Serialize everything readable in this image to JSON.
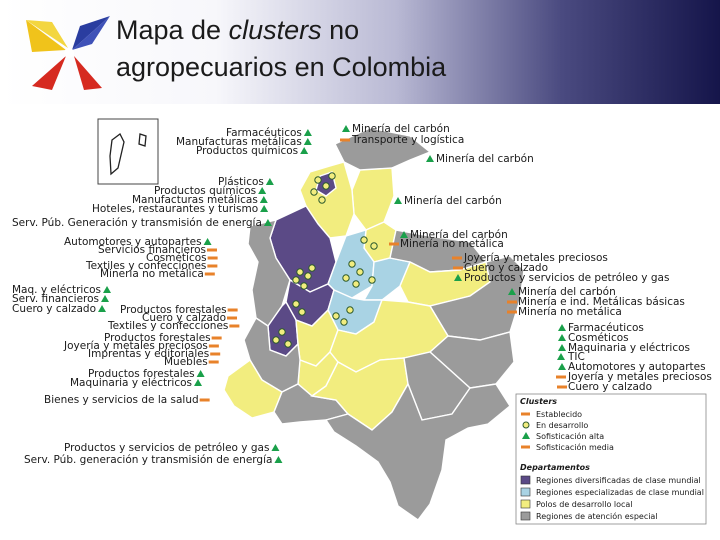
{
  "title": {
    "line1_prefix": "Mapa de ",
    "line1_italic": "clusters",
    "line1_suffix": " no",
    "line2": "agropecuarios en Colombia"
  },
  "colors": {
    "clase_mundial": "#5b4a86",
    "especializadas": "#a9d3e4",
    "polos": "#f2ed7f",
    "atencion_especial": "#9b9b9b",
    "established": "#e8822a",
    "sophisticated": "#1aa04a"
  },
  "map_labels": [
    {
      "text": "Farmacéuticos",
      "marker": "tri"
    },
    {
      "text": "Manufacturas metálicas",
      "marker": "tri"
    },
    {
      "text": "Productos químicos",
      "marker": "tri"
    },
    {
      "text": "Minería del carbón",
      "marker": "tri"
    },
    {
      "text": "Transporte y logística",
      "marker": "bar"
    },
    {
      "text": "Minería del carbón",
      "marker": "tri"
    },
    {
      "text": "Plásticos",
      "marker": "tri"
    },
    {
      "text": "Productos químicos",
      "marker": "tri"
    },
    {
      "text": "Manufacturas metálicas",
      "marker": "tri"
    },
    {
      "text": "Hoteles, restaurantes y turismo",
      "marker": "tri"
    },
    {
      "text": "Minería del carbón",
      "marker": "tri"
    },
    {
      "text": "Serv. Púb. Generación y transmisión de energía",
      "marker": "tri"
    },
    {
      "text": "Automotores y autopartes",
      "marker": "tri"
    },
    {
      "text": "Servicios financieros",
      "marker": "bar"
    },
    {
      "text": "Cosméticos",
      "marker": "bar"
    },
    {
      "text": "Textiles y confecciones",
      "marker": "bar"
    },
    {
      "text": "Minería no metálica",
      "marker": "bar"
    },
    {
      "text": "Minería del carbón",
      "marker": "tri"
    },
    {
      "text": "Minería no metálica",
      "marker": "bar"
    },
    {
      "text": "Joyería y metales preciosos",
      "marker": "bar"
    },
    {
      "text": "Cuero y calzado",
      "marker": "bar"
    },
    {
      "text": "Productos y servicios de petróleo y gas",
      "marker": "tri"
    },
    {
      "text": "Maq. y eléctricos",
      "marker": "tri"
    },
    {
      "text": "Serv. financieros",
      "marker": "tri"
    },
    {
      "text": "Cuero y calzado",
      "marker": "tri"
    },
    {
      "text": "Minería del carbón",
      "marker": "tri"
    },
    {
      "text": "Minería e ind. Metálicas básicas",
      "marker": "bar"
    },
    {
      "text": "Minería no metálica",
      "marker": "bar"
    },
    {
      "text": "Productos forestales",
      "marker": "bar"
    },
    {
      "text": "Cuero y calzado",
      "marker": "bar"
    },
    {
      "text": "Textiles y confecciones",
      "marker": "bar"
    },
    {
      "text": "Farmacéuticos",
      "marker": "tri"
    },
    {
      "text": "Productos forestales",
      "marker": "bar"
    },
    {
      "text": "Cosméticos",
      "marker": "tri"
    },
    {
      "text": "Joyería y metales preciosos",
      "marker": "bar"
    },
    {
      "text": "Maquinaria y eléctricos",
      "marker": "tri"
    },
    {
      "text": "Imprentas y editoriales",
      "marker": "bar"
    },
    {
      "text": "TIC",
      "marker": "tri"
    },
    {
      "text": "Muebles",
      "marker": "bar"
    },
    {
      "text": "Automotores y autopartes",
      "marker": "tri"
    },
    {
      "text": "Productos forestales",
      "marker": "tri"
    },
    {
      "text": "Joyería y metales preciosos",
      "marker": "bar"
    },
    {
      "text": "Maquinaria y eléctricos",
      "marker": "tri"
    },
    {
      "text": "Cuero y calzado",
      "marker": "bar"
    },
    {
      "text": "Bienes y servicios de la salud",
      "marker": "bar"
    },
    {
      "text": "Productos y servicios de petróleo y gas",
      "marker": "tri"
    },
    {
      "text": "Serv. Púb. generación y transmisión de energía",
      "marker": "tri"
    }
  ],
  "legend": {
    "clusters_heading": "Clusters",
    "clusters": [
      {
        "label": "Establecido",
        "marker": "bar"
      },
      {
        "label": "En desarrollo",
        "marker": "dot"
      },
      {
        "label": "Sofisticación alta",
        "marker": "tri"
      },
      {
        "label": "Sofisticación media",
        "marker": "bar"
      }
    ],
    "departamentos_heading": "Departamentos",
    "departamentos": [
      {
        "label": "Regiones diversificadas de clase mundial",
        "color": "#5b4a86"
      },
      {
        "label": "Regiones especializadas de clase mundial",
        "color": "#a9d3e4"
      },
      {
        "label": "Polos de desarrollo local",
        "color": "#f2ed7f"
      },
      {
        "label": "Regiones de atención especial",
        "color": "#9b9b9b"
      }
    ]
  }
}
